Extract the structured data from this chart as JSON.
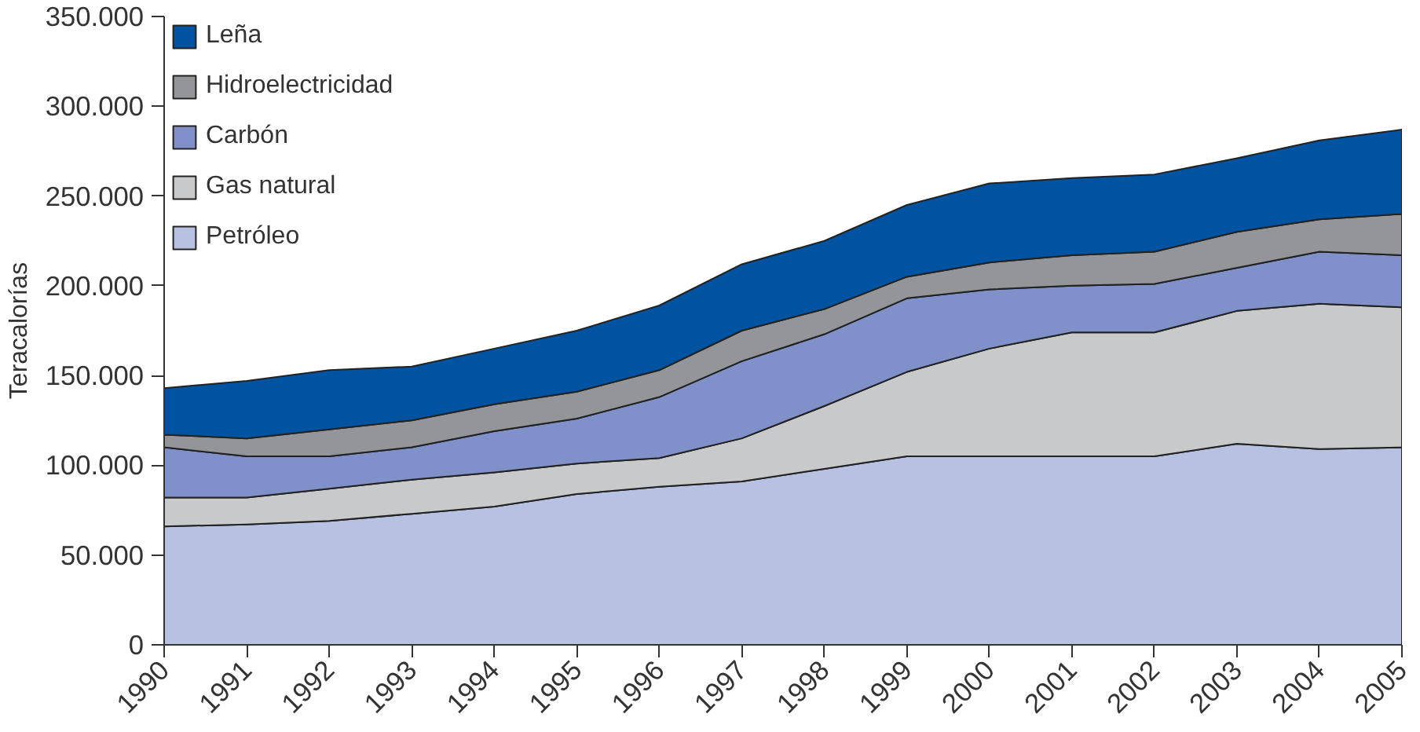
{
  "chart_data": {
    "type": "area",
    "stacked": true,
    "ylabel": "Teracalorías",
    "x": [
      1990,
      1991,
      1992,
      1993,
      1994,
      1995,
      1996,
      1997,
      1998,
      1999,
      2000,
      2001,
      2002,
      2003,
      2004,
      2005
    ],
    "xlim": [
      1990,
      2005
    ],
    "xticks": [
      1990,
      1991,
      1992,
      1993,
      1994,
      1995,
      1996,
      1997,
      1998,
      1999,
      2000,
      2001,
      2002,
      2003,
      2004,
      2005
    ],
    "ylim": [
      0,
      350000
    ],
    "yticks": [
      {
        "value": 0,
        "label": "0"
      },
      {
        "value": 50000,
        "label": "50.000"
      },
      {
        "value": 100000,
        "label": "100.000"
      },
      {
        "value": 150000,
        "label": "150.000"
      },
      {
        "value": 200000,
        "label": "200.000"
      },
      {
        "value": 250000,
        "label": "250.000"
      },
      {
        "value": 300000,
        "label": "300.000"
      },
      {
        "value": 350000,
        "label": "350.000"
      }
    ],
    "grid": false,
    "legend": "top left",
    "series": [
      {
        "name": "Petróleo",
        "color": "#b7c1e1",
        "values": [
          66000,
          67000,
          69000,
          73000,
          77000,
          84000,
          88000,
          91000,
          98000,
          105000,
          105000,
          105000,
          105000,
          112000,
          109000,
          110000
        ]
      },
      {
        "name": "Gas natural",
        "color": "#c8c9cb",
        "values": [
          16000,
          15000,
          18000,
          19000,
          19000,
          17000,
          16000,
          24000,
          35000,
          47000,
          60000,
          69000,
          69000,
          74000,
          81000,
          78000
        ]
      },
      {
        "name": "Carbón",
        "color": "#8090c8",
        "values": [
          28000,
          23000,
          18000,
          18000,
          23000,
          25000,
          34000,
          43000,
          40000,
          41000,
          33000,
          26000,
          27000,
          24000,
          29000,
          29000
        ]
      },
      {
        "name": "Hidroelectricidad",
        "color": "#939598",
        "values": [
          7000,
          10000,
          15000,
          15000,
          15000,
          15000,
          15000,
          17000,
          14000,
          12000,
          15000,
          17000,
          18000,
          20000,
          18000,
          23000
        ]
      },
      {
        "name": "Leña",
        "color": "#0053a0",
        "values": [
          26000,
          32000,
          33000,
          30000,
          31000,
          34000,
          36000,
          37000,
          38000,
          40000,
          44000,
          43000,
          43000,
          41000,
          44000,
          47000
        ]
      }
    ]
  }
}
